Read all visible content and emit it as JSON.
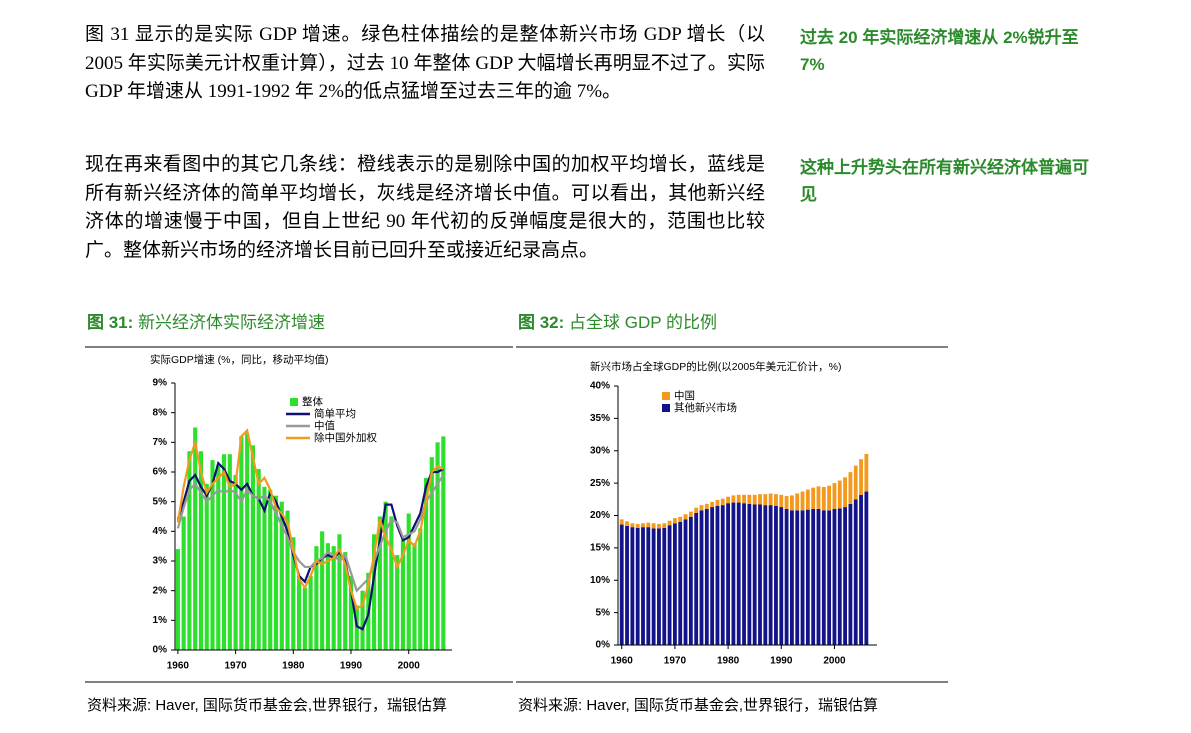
{
  "document": {
    "paragraphs": [
      "图 31 显示的是实际 GDP 增速。绿色柱体描绘的是整体新兴市场 GDP 增长（以 2005 年实际美元计权重计算），过去 10 年整体 GDP 大幅增长再明显不过了。实际 GDP 年增速从 1991-1992 年 2%的低点猛增至过去三年的逾 7%。",
      "现在再来看图中的其它几条线：橙线表示的是剔除中国的加权平均增长，蓝线是所有新兴经济体的简单平均增长，灰线是经济增长中值。可以看出，其他新兴经济体的增速慢于中国，但自上世纪 90 年代初的反弹幅度是很大的，范围也比较广。整体新兴市场的经济增长目前已回升至或接近纪录高点。"
    ],
    "sidenotes": [
      "过去 20 年实际经济增速从 2%锐升至 7%",
      "这种上升势头在所有新兴经济体普遍可见"
    ],
    "figures": [
      {
        "label": "图 31:",
        "caption": "新兴经济体实际经济增速",
        "source": "资料来源: Haver, 国际货币基金会,世界银行，瑞银估算"
      },
      {
        "label": "图 32:",
        "caption": "占全球 GDP 的比例",
        "source": "资料来源: Haver, 国际货币基金会,世界银行，瑞银估算"
      }
    ]
  },
  "chart_data": [
    {
      "type": "bar",
      "title": "实际GDP增速 (%，同比，移动平均值)",
      "x": [
        1960,
        1961,
        1962,
        1963,
        1964,
        1965,
        1966,
        1967,
        1968,
        1969,
        1970,
        1971,
        1972,
        1973,
        1974,
        1975,
        1976,
        1977,
        1978,
        1979,
        1980,
        1981,
        1982,
        1983,
        1984,
        1985,
        1986,
        1987,
        1988,
        1989,
        1990,
        1991,
        1992,
        1993,
        1994,
        1995,
        1996,
        1997,
        1998,
        1999,
        2000,
        2001,
        2002,
        2003,
        2004,
        2005,
        2006
      ],
      "xlim": [
        1959.5,
        2007.5
      ],
      "xticks": [
        1960,
        1970,
        1980,
        1990,
        2000
      ],
      "ylim": [
        0,
        9
      ],
      "yticks": [
        {
          "value": 0,
          "label": "0%"
        },
        {
          "value": 1,
          "label": "1%"
        },
        {
          "value": 2,
          "label": "2%"
        },
        {
          "value": 3,
          "label": "3%"
        },
        {
          "value": 4,
          "label": "4%"
        },
        {
          "value": 5,
          "label": "5%"
        },
        {
          "value": 6,
          "label": "6%"
        },
        {
          "value": 7,
          "label": "7%"
        },
        {
          "value": 8,
          "label": "8%"
        },
        {
          "value": 9,
          "label": "9%"
        }
      ],
      "series": [
        {
          "name": "整体",
          "type": "bar",
          "color": "#2ee02e",
          "values": [
            3.4,
            4.5,
            6.7,
            7.5,
            6.7,
            5.6,
            6.4,
            6.2,
            6.6,
            6.6,
            5.9,
            7.2,
            7.3,
            6.9,
            6.1,
            5.5,
            5.4,
            5.2,
            5.0,
            4.7,
            3.8,
            2.5,
            2.1,
            2.5,
            3.5,
            4.0,
            3.6,
            3.5,
            3.9,
            3.3,
            2.5,
            1.5,
            2.0,
            2.6,
            3.9,
            4.5,
            5.0,
            4.5,
            3.2,
            3.7,
            4.6,
            3.6,
            4.1,
            5.8,
            6.5,
            7.0,
            7.2
          ]
        },
        {
          "name": "简单平均",
          "type": "line",
          "color": "#10106e",
          "values": [
            4.4,
            5.0,
            5.7,
            5.9,
            5.5,
            5.2,
            5.6,
            6.3,
            6.1,
            5.7,
            5.6,
            5.4,
            5.6,
            5.2,
            5.1,
            4.7,
            5.3,
            5.0,
            4.5,
            4.0,
            3.2,
            2.5,
            2.3,
            2.8,
            2.9,
            3.1,
            3.2,
            3.1,
            3.3,
            3.0,
            2.0,
            0.8,
            0.7,
            1.2,
            2.5,
            3.7,
            4.9,
            4.9,
            4.2,
            3.7,
            3.8,
            4.2,
            4.6,
            5.5,
            6.0,
            6.0,
            6.1
          ]
        },
        {
          "name": "中值",
          "type": "line",
          "color": "#9a9a9a",
          "values": [
            4.1,
            4.8,
            5.4,
            5.6,
            5.3,
            5.0,
            5.2,
            5.4,
            5.3,
            5.4,
            5.3,
            5.0,
            5.4,
            5.2,
            5.1,
            5.2,
            5.0,
            4.6,
            4.2,
            3.8,
            3.3,
            3.0,
            2.8,
            2.8,
            3.0,
            3.1,
            3.3,
            3.2,
            3.0,
            3.2,
            2.6,
            2.0,
            2.2,
            2.4,
            3.0,
            3.5,
            4.0,
            4.4,
            4.3,
            3.8,
            3.9,
            4.0,
            4.4,
            5.0,
            5.3,
            5.6,
            5.9
          ]
        },
        {
          "name": "除中国外加权",
          "type": "line",
          "color": "#f39a1e",
          "values": [
            4.3,
            5.5,
            6.4,
            7.0,
            6.0,
            5.3,
            5.6,
            5.8,
            6.0,
            5.5,
            5.6,
            7.2,
            7.4,
            6.5,
            5.6,
            5.8,
            5.4,
            4.8,
            4.6,
            4.3,
            3.4,
            2.4,
            2.1,
            2.5,
            3.0,
            2.9,
            3.0,
            3.1,
            3.4,
            2.9,
            2.0,
            1.4,
            1.5,
            2.2,
            3.2,
            4.4,
            3.8,
            3.4,
            2.8,
            3.2,
            3.7,
            3.5,
            4.0,
            5.0,
            6.0,
            6.2,
            6.1
          ]
        }
      ]
    },
    {
      "type": "bar",
      "stacked": true,
      "title": "新兴市场占全球GDP的比例(以2005年美元汇价计，%)",
      "x": [
        1960,
        1961,
        1962,
        1963,
        1964,
        1965,
        1966,
        1967,
        1968,
        1969,
        1970,
        1971,
        1972,
        1973,
        1974,
        1975,
        1976,
        1977,
        1978,
        1979,
        1980,
        1981,
        1982,
        1983,
        1984,
        1985,
        1986,
        1987,
        1988,
        1989,
        1990,
        1991,
        1992,
        1993,
        1994,
        1995,
        1996,
        1997,
        1998,
        1999,
        2000,
        2001,
        2002,
        2003,
        2004,
        2005,
        2006
      ],
      "xlim": [
        1959.3,
        2008
      ],
      "xticks": [
        1960,
        1970,
        1980,
        1990,
        2000
      ],
      "ylim": [
        0,
        40
      ],
      "yticks": [
        {
          "value": 0,
          "label": "0%"
        },
        {
          "value": 5,
          "label": "5%"
        },
        {
          "value": 10,
          "label": "10%"
        },
        {
          "value": 15,
          "label": "15%"
        },
        {
          "value": 20,
          "label": "20%"
        },
        {
          "value": 25,
          "label": "25%"
        },
        {
          "value": 30,
          "label": "30%"
        },
        {
          "value": 35,
          "label": "35%"
        },
        {
          "value": 40,
          "label": "40%"
        }
      ],
      "series": [
        {
          "name": "其他新兴市场",
          "type": "bar",
          "color": "#14148a",
          "values": [
            18.6,
            18.4,
            18.2,
            18.1,
            18.2,
            18.2,
            18.0,
            18.0,
            18.1,
            18.5,
            18.8,
            19.0,
            19.4,
            19.8,
            20.4,
            20.8,
            21.0,
            21.3,
            21.5,
            21.6,
            21.9,
            22.0,
            22.0,
            21.9,
            21.8,
            21.7,
            21.7,
            21.6,
            21.6,
            21.5,
            21.3,
            21.0,
            20.8,
            20.8,
            20.8,
            20.9,
            21.0,
            21.0,
            20.8,
            20.8,
            21.0,
            21.1,
            21.3,
            21.8,
            22.5,
            23.2,
            23.7
          ]
        },
        {
          "name": "中国",
          "type": "bar",
          "color": "#f39a1e",
          "values": [
            0.8,
            0.7,
            0.6,
            0.6,
            0.6,
            0.7,
            0.8,
            0.7,
            0.7,
            0.7,
            0.8,
            0.8,
            0.8,
            0.8,
            0.8,
            0.8,
            0.8,
            0.8,
            0.9,
            1.0,
            1.0,
            1.1,
            1.2,
            1.3,
            1.4,
            1.5,
            1.6,
            1.7,
            1.8,
            1.8,
            1.9,
            2.0,
            2.3,
            2.6,
            2.9,
            3.1,
            3.3,
            3.5,
            3.6,
            3.8,
            4.0,
            4.3,
            4.6,
            4.9,
            5.2,
            5.5,
            5.8
          ]
        }
      ]
    }
  ]
}
